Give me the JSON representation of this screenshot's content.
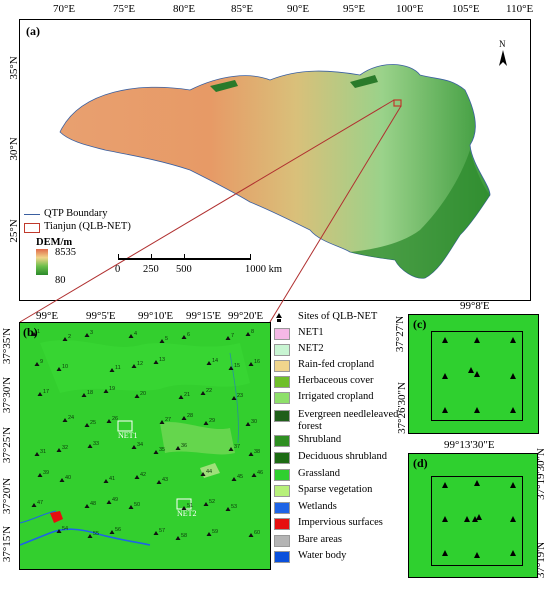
{
  "panel_a": {
    "label": "(a)",
    "lon_ticks": [
      "70°E",
      "75°E",
      "80°E",
      "85°E",
      "90°E",
      "95°E",
      "100°E",
      "105°E",
      "110°E"
    ],
    "lat_ticks": [
      "35°N",
      "30°N",
      "25°N"
    ],
    "north": "N",
    "legend": {
      "boundary": "QTP Boundary",
      "tianjun": "Tianjun (QLB-NET)",
      "dem_title": "DEM/m",
      "dem_max": "8535",
      "dem_min": "80"
    },
    "scalebar": [
      "0",
      "250",
      "500",
      "1000 km"
    ]
  },
  "panel_b": {
    "label": "(b)",
    "lon_ticks": [
      "99°E",
      "99°5'E",
      "99°10'E",
      "99°15'E",
      "99°20'E"
    ],
    "lat_ticks": [
      "37°35'N",
      "37°30'N",
      "37°25'N",
      "37°20'N",
      "37°15'N"
    ],
    "net_labels": [
      "NET1",
      "NET2"
    ],
    "site_numbers": [
      "1",
      "2",
      "3",
      "4",
      "5",
      "6",
      "7",
      "8",
      "9",
      "10",
      "11",
      "12",
      "13",
      "14",
      "15",
      "16",
      "17",
      "18",
      "19",
      "20",
      "21",
      "22",
      "23",
      "24",
      "25",
      "26",
      "27",
      "28",
      "29",
      "30",
      "31",
      "32",
      "33",
      "34",
      "35",
      "36",
      "37",
      "38",
      "39",
      "40",
      "41",
      "42",
      "43",
      "44",
      "45",
      "46",
      "47",
      "48",
      "49",
      "50",
      "51",
      "52",
      "53",
      "54",
      "55",
      "56",
      "57",
      "58",
      "59",
      "60"
    ]
  },
  "legend": {
    "items": [
      {
        "label": "Sites of QLB-NET",
        "color": "#000000",
        "type": "marker"
      },
      {
        "label": "NET1",
        "color": "#f5b8e6"
      },
      {
        "label": "NET2",
        "color": "#c8f5d2"
      },
      {
        "label": "Rain-fed cropland",
        "color": "#f0d58c"
      },
      {
        "label": "Herbaceous cover",
        "color": "#6fbf2a"
      },
      {
        "label": "Irrigated cropland",
        "color": "#8ee06a"
      },
      {
        "label": "Evergreen needleleaved forest",
        "color": "#1f5f1a"
      },
      {
        "label": "Shrubland",
        "color": "#2f8f22"
      },
      {
        "label": "Deciduous shrubland",
        "color": "#1d6b14"
      },
      {
        "label": "Grassland",
        "color": "#2fd02f"
      },
      {
        "label": "Sparse vegetation",
        "color": "#b7f07a"
      },
      {
        "label": "Wetlands",
        "color": "#1e64e6"
      },
      {
        "label": "Impervious surfaces",
        "color": "#e60f0f"
      },
      {
        "label": "Bare areas",
        "color": "#b4b4b4"
      },
      {
        "label": "Water body",
        "color": "#0a50dc"
      }
    ]
  },
  "panel_c": {
    "label": "(c)",
    "lon_tick": "99°8'E",
    "lat_top": "37°27'N",
    "lat_bottom": "37°26'30\"N"
  },
  "panel_d": {
    "label": "(d)",
    "lon_tick": "99°13'30\"E",
    "lat_top": "37°19'30\"N",
    "lat_bottom": "37°19'N"
  }
}
